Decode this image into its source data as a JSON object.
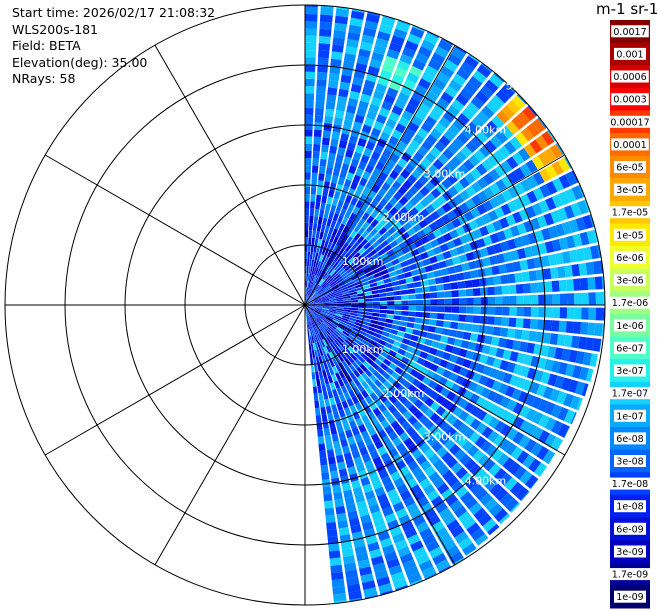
{
  "info": {
    "start_time": "Start time: 2026/02/17 21:08:32",
    "instrument": "WLS200s-181",
    "field": "Field: BETA",
    "elevation": "Elevation(deg): 35.00",
    "nrays": "NRays: 58"
  },
  "colorbar": {
    "title": "m-1 sr-1",
    "labels": [
      "0.0017",
      "0.001",
      "0.0006",
      "0.0003",
      "0.00017",
      "0.0001",
      "6e-05",
      "3e-05",
      "1.7e-05",
      "1e-05",
      "6e-06",
      "3e-06",
      "1.7e-06",
      "1e-06",
      "6e-07",
      "3e-07",
      "1.7e-07",
      "1e-07",
      "6e-08",
      "3e-08",
      "1.7e-08",
      "1e-08",
      "6e-09",
      "3e-09",
      "1.7e-09",
      "1e-09"
    ],
    "colors": [
      "#800000",
      "#aa0000",
      "#d40000",
      "#ff0000",
      "#ff3a00",
      "#ff6a00",
      "#ff8c00",
      "#ffa800",
      "#ffc800",
      "#ffe800",
      "#f0ff30",
      "#c8ff5a",
      "#a0ff80",
      "#7affa0",
      "#50ffc8",
      "#28f0e8",
      "#14d2ff",
      "#0aaaff",
      "#0088ff",
      "#0064ff",
      "#0040ff",
      "#0020f0",
      "#0010d8",
      "#0000c0",
      "#000098",
      "#000070"
    ]
  },
  "chart_data": {
    "type": "heatmap",
    "projection": "polar-ppi",
    "field": "BETA",
    "units": "m-1 sr-1",
    "scale": "log",
    "range_rings_km": [
      1,
      2,
      3,
      4,
      5
    ],
    "range_ring_labels": [
      "1.00km",
      "2.00km",
      "3.00km",
      "4.00km",
      "5."
    ],
    "max_range_km": 5.0,
    "spoke_angles_deg": [
      0,
      30,
      60,
      90,
      120,
      150,
      180,
      210,
      240,
      270,
      300,
      330
    ],
    "azimuth_coverage_deg": [
      0,
      175
    ],
    "nrays": 58,
    "elevation_deg": 35.0,
    "colorbar_min": 1e-09,
    "colorbar_max": 0.0017,
    "features": [
      {
        "description_value": "background",
        "beta_range": [
          1e-09,
          1e-07
        ]
      },
      {
        "azimuth_deg": [
          20,
          26
        ],
        "range_km": [
          4.0,
          4.3
        ],
        "beta_range": [
          1e-07,
          6e-07
        ]
      },
      {
        "azimuth_deg": [
          45,
          62
        ],
        "range_km": [
          4.5,
          5.0
        ],
        "beta_range": [
          1.7e-05,
          0.0003
        ]
      }
    ]
  }
}
